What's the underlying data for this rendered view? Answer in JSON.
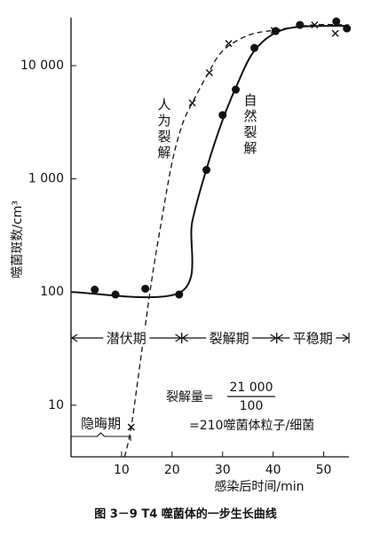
{
  "chart_data": {
    "type": "line",
    "caption": "图 3－9    T4 噬菌体的一步生长曲线",
    "x_label": "感染后时间/min",
    "y_label": "噬菌斑数/cm³",
    "log_y": true,
    "xlim": [
      0,
      55
    ],
    "ylim": [
      3.5,
      26500
    ],
    "xticks": [
      10,
      20,
      30,
      40,
      50
    ],
    "yticks": [
      10,
      100,
      {
        "value": 1000,
        "label": "1 000"
      },
      {
        "value": 10000,
        "label": "10 000"
      }
    ],
    "series": [
      {
        "name": "自然裂解",
        "marker": "dot",
        "dash": false,
        "color": "#111111",
        "x": [
          4.7,
          8.8,
          14.7,
          21.4,
          26.8,
          30,
          32.6,
          36.3,
          40.5,
          45.3,
          52.5,
          54.6
        ],
        "values": [
          105,
          95,
          107,
          95,
          1200,
          3660,
          6140,
          14340,
          20200,
          22900,
          24600,
          21300
        ],
        "curve_x": [
          0,
          21.7,
          24,
          27,
          30,
          33,
          36,
          40,
          45,
          55
        ],
        "curve_y": [
          100,
          100,
          420,
          1300,
          3300,
          7000,
          13000,
          19000,
          22000,
          22500
        ]
      },
      {
        "name": "人为裂解",
        "marker": "cross",
        "dash": true,
        "color": "#111111",
        "x": [
          11.9,
          24,
          27.4,
          31.2,
          40.2,
          48.2,
          52.3
        ],
        "values": [
          6.4,
          4690,
          8660,
          15700,
          20500,
          22900,
          19300
        ],
        "curve_x": [
          10.6,
          11.9,
          14,
          16,
          18,
          20,
          22,
          24,
          27,
          30,
          35,
          40,
          48,
          55
        ],
        "curve_y": [
          3.5,
          6.4,
          30,
          130,
          450,
          1400,
          3000,
          4700,
          8300,
          13500,
          18500,
          20500,
          22900,
          22900
        ]
      }
    ],
    "phases": [
      {
        "label": "潜伏期",
        "start": 0,
        "end": 21.9
      },
      {
        "label": "裂解期",
        "start": 21.9,
        "end": 40.7
      },
      {
        "label": "平稳期",
        "start": 40.7,
        "end": 55
      }
    ],
    "eclipse": {
      "label": "隐晦期",
      "start": 0,
      "end": 11.8
    },
    "formula": {
      "lhs": "裂解量=",
      "numerator": "21 000",
      "denominator": "100",
      "result": "=210噬菌体粒子/细菌"
    }
  }
}
